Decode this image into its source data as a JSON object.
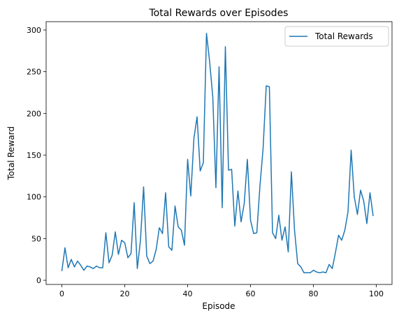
{
  "chart_data": {
    "type": "line",
    "title": "Total Rewards over Episodes",
    "xlabel": "Episode",
    "ylabel": "Total Reward",
    "xlim": [
      -5,
      105
    ],
    "ylim": [
      -5,
      310
    ],
    "xticks": [
      0,
      20,
      40,
      60,
      80,
      100
    ],
    "yticks": [
      0,
      50,
      100,
      150,
      200,
      250,
      300
    ],
    "grid": false,
    "legend_position": "top-right",
    "series": [
      {
        "name": "Total Rewards",
        "color": "#1f77b4",
        "x": [
          0,
          1,
          2,
          3,
          4,
          5,
          6,
          7,
          8,
          9,
          10,
          11,
          12,
          13,
          14,
          15,
          16,
          17,
          18,
          19,
          20,
          21,
          22,
          23,
          24,
          25,
          26,
          27,
          28,
          29,
          30,
          31,
          32,
          33,
          34,
          35,
          36,
          37,
          38,
          39,
          40,
          41,
          42,
          43,
          44,
          45,
          46,
          47,
          48,
          49,
          50,
          51,
          52,
          53,
          54,
          55,
          56,
          57,
          58,
          59,
          60,
          61,
          62,
          63,
          64,
          65,
          66,
          67,
          68,
          69,
          70,
          71,
          72,
          73,
          74,
          75,
          76,
          77,
          78,
          79,
          80,
          81,
          82,
          83,
          84,
          85,
          86,
          87,
          88,
          89,
          90,
          91,
          92,
          93,
          94,
          95,
          96,
          97,
          98,
          99
        ],
        "values": [
          11,
          39,
          15,
          25,
          16,
          23,
          18,
          12,
          17,
          16,
          14,
          17,
          15,
          15,
          57,
          21,
          30,
          58,
          31,
          48,
          45,
          27,
          32,
          93,
          14,
          48,
          112,
          29,
          20,
          23,
          37,
          63,
          56,
          105,
          40,
          36,
          89,
          64,
          60,
          42,
          145,
          101,
          170,
          196,
          131,
          141,
          296,
          262,
          220,
          111,
          256,
          87,
          280,
          132,
          133,
          65,
          107,
          70,
          92,
          145,
          72,
          56,
          57,
          113,
          158,
          233,
          232,
          57,
          50,
          78,
          48,
          64,
          34,
          130,
          60,
          20,
          16,
          9,
          9,
          9,
          12,
          10,
          9,
          10,
          9,
          19,
          14,
          33,
          54,
          48,
          60,
          82,
          156,
          100,
          79,
          108,
          95,
          68,
          105,
          77
        ]
      }
    ]
  }
}
